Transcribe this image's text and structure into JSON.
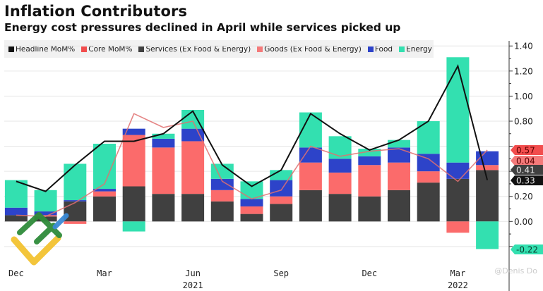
{
  "chart_data": {
    "type": "bar",
    "stacked": true,
    "title": "Inflation Contributors",
    "subtitle": "Energy cost pressures declined in April while services picked up",
    "xlabel": "",
    "ylabel": "",
    "ylim": [
      -0.3,
      1.45
    ],
    "y_ticks": [
      -0.2,
      0.0,
      0.2,
      0.4,
      0.6,
      0.8,
      1.0,
      1.2,
      1.4
    ],
    "y_tick_labels": [
      "",
      "0.00",
      "0.20",
      "",
      "",
      "0.80",
      "1.00",
      "1.20",
      "1.40"
    ],
    "y_axis_side": "right",
    "grid": true,
    "legend_position": "top-left",
    "categories": [
      "Dec 2020",
      "Jan 2021",
      "Feb 2021",
      "Mar 2021",
      "Apr 2021",
      "May 2021",
      "Jun 2021",
      "Jul 2021",
      "Aug 2021",
      "Sep 2021",
      "Oct 2021",
      "Nov 2021",
      "Dec 2021",
      "Jan 2022",
      "Feb 2022",
      "Mar 2022",
      "Apr 2022"
    ],
    "x_tick_labels": [
      {
        "index": 0,
        "label": "Dec",
        "year": ""
      },
      {
        "index": 3,
        "label": "Mar",
        "year": ""
      },
      {
        "index": 6,
        "label": "Jun",
        "year": "2021"
      },
      {
        "index": 9,
        "label": "Sep",
        "year": ""
      },
      {
        "index": 12,
        "label": "Dec",
        "year": ""
      },
      {
        "index": 15,
        "label": "Mar",
        "year": "2022"
      }
    ],
    "bar_series": [
      {
        "name": "Services (Ex Food & Energy)",
        "color": "#404040",
        "values": [
          0.05,
          0.04,
          0.16,
          0.2,
          0.28,
          0.22,
          0.22,
          0.16,
          0.06,
          0.14,
          0.25,
          0.22,
          0.2,
          0.25,
          0.31,
          0.34,
          0.41
        ]
      },
      {
        "name": "Goods (Ex Food & Energy)",
        "color": "#fb6b6b",
        "values": [
          0.0,
          0.01,
          -0.02,
          0.04,
          0.41,
          0.37,
          0.42,
          0.09,
          0.06,
          0.06,
          0.22,
          0.17,
          0.25,
          0.22,
          0.09,
          -0.09,
          0.04
        ]
      },
      {
        "name": "Food",
        "color": "#2d43c9",
        "values": [
          0.06,
          0.03,
          0.01,
          0.02,
          0.05,
          0.07,
          0.1,
          0.09,
          0.06,
          0.13,
          0.12,
          0.11,
          0.07,
          0.12,
          0.14,
          0.13,
          0.11
        ]
      },
      {
        "name": "Energy",
        "color": "#33e0b0",
        "values": [
          0.22,
          0.17,
          0.29,
          0.36,
          -0.08,
          0.04,
          0.15,
          0.12,
          0.14,
          0.08,
          0.28,
          0.18,
          0.06,
          0.06,
          0.26,
          0.84,
          -0.22
        ]
      }
    ],
    "line_series": [
      {
        "name": "Headline MoM%",
        "color": "#111111",
        "values": [
          0.32,
          0.24,
          0.45,
          0.64,
          0.64,
          0.7,
          0.88,
          0.45,
          0.28,
          0.41,
          0.86,
          0.7,
          0.57,
          0.65,
          0.8,
          1.24,
          0.33
        ]
      },
      {
        "name": "Core MoM%",
        "color": "#e07070",
        "values": [
          0.05,
          0.04,
          0.15,
          0.3,
          0.86,
          0.75,
          0.8,
          0.32,
          0.18,
          0.25,
          0.6,
          0.52,
          0.56,
          0.58,
          0.5,
          0.32,
          0.57
        ]
      }
    ],
    "last_value_tags": [
      {
        "label": "0.57",
        "series": "Core MoM%",
        "bg": "#f24d4d",
        "fg": "#5a0000",
        "value": 0.57
      },
      {
        "label": "0.04",
        "series": "Goods (Ex Food & Energy)",
        "bg": "#f47a7a",
        "fg": "#5a0000",
        "value": 0.45
      },
      {
        "label": "0.41",
        "series": "Services (Ex Food & Energy)",
        "bg": "#404040",
        "fg": "#e8e8e8",
        "value": 0.41
      },
      {
        "label": "0.33",
        "series": "Headline MoM%",
        "bg": "#111111",
        "fg": "#f0f0f0",
        "value": 0.33
      },
      {
        "label": "-0.22",
        "series": "Energy",
        "bg": "#33e0b0",
        "fg": "#0a3a2c",
        "value": -0.22
      }
    ]
  },
  "legend": [
    {
      "label": "Headline MoM%",
      "color": "#111111"
    },
    {
      "label": "Core MoM%",
      "color": "#f24d4d"
    },
    {
      "label": "Services (Ex Food & Energy)",
      "color": "#404040"
    },
    {
      "label": "Goods (Ex Food & Energy)",
      "color": "#f47a7a"
    },
    {
      "label": "Food",
      "color": "#2d43c9"
    },
    {
      "label": "Energy",
      "color": "#33e0b0"
    }
  ],
  "watermark": "@Denis Do"
}
